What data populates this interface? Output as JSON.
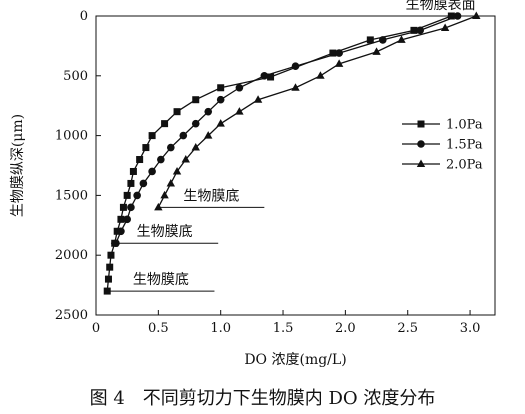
{
  "chart_data": {
    "type": "line",
    "xlabel": "DO 浓度(mg/L)",
    "ylabel": "生物膜纵深(μm)",
    "xlim": [
      0,
      3.2
    ],
    "ylim": [
      0,
      2500
    ],
    "y_reversed": true,
    "grid": false,
    "legend_position": "right",
    "x_ticks": [
      "0",
      "0.5",
      "1.0",
      "1.5",
      "2.0",
      "2.5",
      "3.0"
    ],
    "y_ticks": [
      "0",
      "500",
      "1000",
      "1500",
      "2000",
      "2500"
    ],
    "series": [
      {
        "name": "1.0Pa",
        "marker": "square",
        "points": [
          [
            2.85,
            0
          ],
          [
            2.55,
            120
          ],
          [
            2.2,
            200
          ],
          [
            1.9,
            310
          ],
          [
            1.4,
            510
          ],
          [
            1.0,
            600
          ],
          [
            0.8,
            700
          ],
          [
            0.65,
            800
          ],
          [
            0.55,
            900
          ],
          [
            0.45,
            1000
          ],
          [
            0.4,
            1100
          ],
          [
            0.35,
            1200
          ],
          [
            0.3,
            1300
          ],
          [
            0.28,
            1400
          ],
          [
            0.25,
            1500
          ],
          [
            0.22,
            1600
          ],
          [
            0.2,
            1700
          ],
          [
            0.17,
            1800
          ],
          [
            0.15,
            1900
          ],
          [
            0.12,
            2000
          ],
          [
            0.11,
            2100
          ],
          [
            0.1,
            2200
          ],
          [
            0.09,
            2300
          ]
        ]
      },
      {
        "name": "1.5Pa",
        "marker": "circle",
        "points": [
          [
            2.9,
            0
          ],
          [
            2.6,
            120
          ],
          [
            2.3,
            200
          ],
          [
            1.95,
            310
          ],
          [
            1.6,
            420
          ],
          [
            1.35,
            500
          ],
          [
            1.15,
            600
          ],
          [
            1.0,
            700
          ],
          [
            0.9,
            800
          ],
          [
            0.8,
            900
          ],
          [
            0.7,
            1000
          ],
          [
            0.6,
            1100
          ],
          [
            0.52,
            1200
          ],
          [
            0.45,
            1300
          ],
          [
            0.38,
            1400
          ],
          [
            0.33,
            1500
          ],
          [
            0.28,
            1600
          ],
          [
            0.25,
            1700
          ],
          [
            0.2,
            1800
          ],
          [
            0.16,
            1900
          ]
        ]
      },
      {
        "name": "2.0Pa",
        "marker": "triangle",
        "points": [
          [
            3.05,
            0
          ],
          [
            2.8,
            100
          ],
          [
            2.45,
            200
          ],
          [
            2.25,
            300
          ],
          [
            1.95,
            400
          ],
          [
            1.8,
            500
          ],
          [
            1.6,
            600
          ],
          [
            1.3,
            700
          ],
          [
            1.15,
            800
          ],
          [
            1.0,
            900
          ],
          [
            0.9,
            1000
          ],
          [
            0.8,
            1100
          ],
          [
            0.72,
            1200
          ],
          [
            0.65,
            1300
          ],
          [
            0.6,
            1400
          ],
          [
            0.55,
            1500
          ],
          [
            0.5,
            1600
          ]
        ]
      }
    ],
    "annotations": [
      {
        "text": "生物膜表面",
        "x": 2.2,
        "y": 0,
        "x_end": 3.2
      },
      {
        "text": "生物膜底",
        "x": 0.5,
        "y": 1600,
        "x_end": 1.35
      },
      {
        "text": "生物膜底",
        "x": 0.12,
        "y": 1900,
        "x_end": 0.98
      },
      {
        "text": "生物膜底",
        "x": 0.09,
        "y": 2300,
        "x_end": 0.95
      }
    ]
  },
  "caption": "图 4　不同剪切力下生物膜内 DO 浓度分布"
}
